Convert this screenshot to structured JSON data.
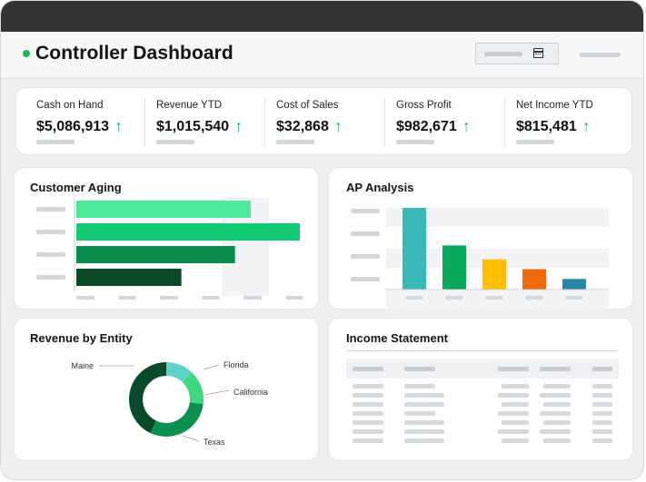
{
  "app": {
    "title": "Controller Dashboard"
  },
  "kpis": [
    {
      "label": "Cash on Hand",
      "value": "$5,086,913",
      "trend": "up"
    },
    {
      "label": "Revenue YTD",
      "value": "$1,015,540",
      "trend": "up"
    },
    {
      "label": "Cost of Sales",
      "value": "$32,868",
      "trend": "up"
    },
    {
      "label": "Gross Profit",
      "value": "$982,671",
      "trend": "up"
    },
    {
      "label": "Net Income YTD",
      "value": "$815,481",
      "trend": "up"
    }
  ],
  "icons": {
    "trend_up": "↑",
    "calendar": "calendar-icon"
  },
  "colors": {
    "accent_green": "#1db954",
    "teal": "#3bb8b8",
    "green": "#0aa85a",
    "yellow": "#ffbf00",
    "orange": "#ee6a0c",
    "blue": "#2a86a8"
  },
  "cards": {
    "customer_aging": {
      "title": "Customer Aging"
    },
    "ap_analysis": {
      "title": "AP Analysis"
    },
    "revenue_by_entity": {
      "title": "Revenue by Entity"
    },
    "income_statement": {
      "title": "Income Statement"
    }
  },
  "chart_data": [
    {
      "type": "bar",
      "orientation": "horizontal",
      "title": "Customer Aging",
      "values": [
        0.78,
        1.0,
        0.71,
        0.47
      ],
      "colors": [
        "#4ee89a",
        "#12cc74",
        "#0a8c4e",
        "#0b4a28"
      ],
      "grid": false
    },
    {
      "type": "bar",
      "orientation": "vertical",
      "title": "AP Analysis",
      "values": [
        1.0,
        0.54,
        0.37,
        0.25,
        0.13
      ],
      "colors": [
        "#3bb8b8",
        "#0aa85a",
        "#ffbf00",
        "#ee6a0c",
        "#2a86a8"
      ],
      "grid": true
    },
    {
      "type": "pie",
      "title": "Revenue by Entity",
      "donut": true,
      "slices": [
        {
          "label": "Florida",
          "value": 12,
          "color": "#5fd3cb"
        },
        {
          "label": "California",
          "value": 15,
          "color": "#3ed882"
        },
        {
          "label": "Texas",
          "value": 30,
          "color": "#0c9050"
        },
        {
          "label": "Maine",
          "value": 43,
          "color": "#094a2a"
        }
      ]
    }
  ]
}
